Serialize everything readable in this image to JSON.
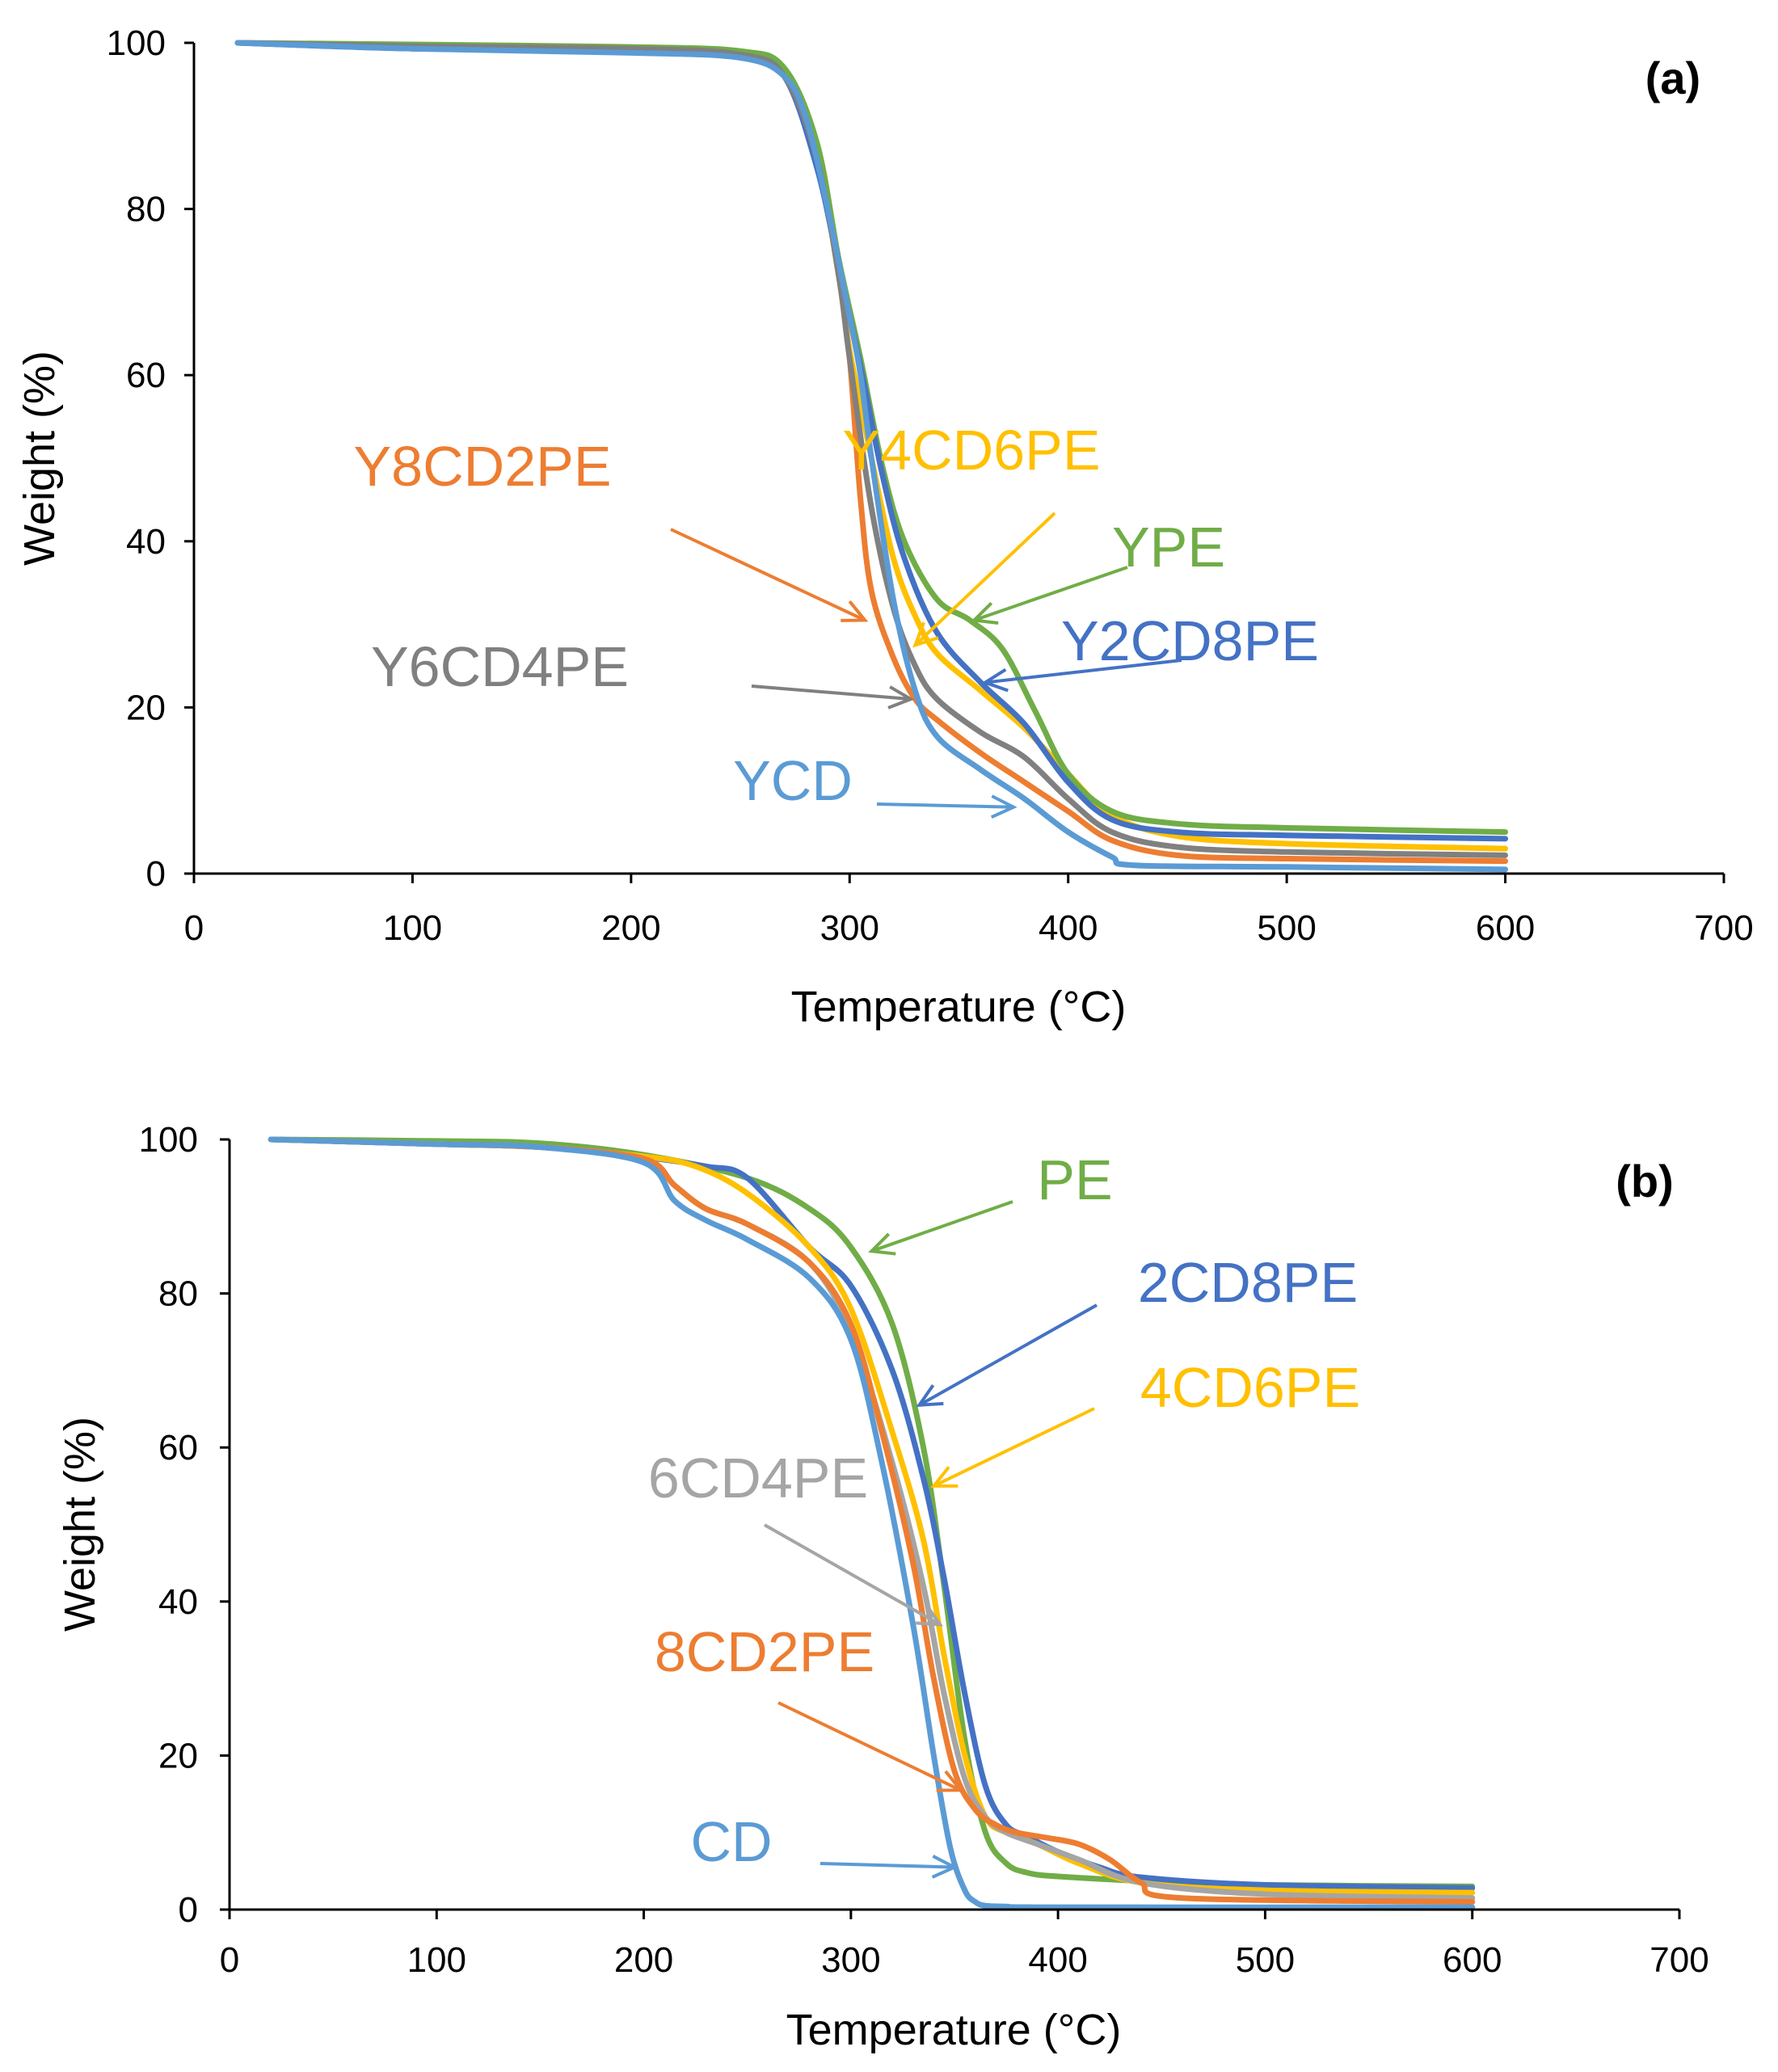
{
  "chart_data": [
    {
      "type": "line",
      "panel": "(a)",
      "title": "",
      "xlabel": "Temperature  (°C)",
      "ylabel": "Weight (%)",
      "xlim": [
        0,
        700
      ],
      "ylim": [
        0,
        100
      ],
      "xticks": [
        0,
        100,
        200,
        300,
        400,
        500,
        600,
        700
      ],
      "yticks": [
        0,
        20,
        40,
        60,
        80,
        100
      ],
      "grid": false,
      "series": [
        {
          "name": "Y8CD2PE",
          "color": "#ED7D31",
          "x": [
            20,
            100,
            200,
            250,
            270,
            285,
            295,
            300,
            305,
            310,
            320,
            330,
            340,
            360,
            380,
            400,
            420,
            450,
            500,
            600
          ],
          "y": [
            100,
            99.6,
            99.3,
            98.6,
            96,
            86,
            72,
            62,
            45,
            34,
            26,
            21,
            18.5,
            14.5,
            11,
            7.5,
            4,
            2.2,
            1.8,
            1.5
          ]
        },
        {
          "name": "Y4CD6PE",
          "color": "#FFC000",
          "x": [
            20,
            100,
            200,
            250,
            270,
            285,
            295,
            300,
            310,
            320,
            330,
            340,
            360,
            380,
            400,
            420,
            450,
            500,
            600
          ],
          "y": [
            100,
            99.6,
            99.3,
            98.6,
            96,
            86,
            72,
            63,
            50,
            38,
            31,
            26.5,
            22,
            17.5,
            12,
            7,
            4.5,
            3.6,
            3
          ]
        },
        {
          "name": "YPE",
          "color": "#70AD47",
          "x": [
            20,
            100,
            200,
            250,
            270,
            285,
            295,
            305,
            315,
            325,
            340,
            355,
            370,
            385,
            400,
            420,
            450,
            500,
            600
          ],
          "y": [
            100,
            99.8,
            99.5,
            99,
            97,
            88,
            74,
            62,
            49,
            40,
            33,
            30.5,
            27,
            19.5,
            12,
            7.5,
            6,
            5.5,
            5
          ]
        },
        {
          "name": "Y2CD8PE",
          "color": "#4472C4",
          "x": [
            20,
            100,
            200,
            250,
            270,
            285,
            295,
            305,
            315,
            325,
            340,
            360,
            380,
            400,
            420,
            450,
            500,
            600
          ],
          "y": [
            100,
            99.3,
            99,
            98.5,
            96,
            85,
            73,
            61,
            48,
            38,
            29,
            23,
            18,
            11,
            6.5,
            5,
            4.6,
            4.2
          ]
        },
        {
          "name": "Y6CD4PE",
          "color": "#808080",
          "x": [
            20,
            100,
            200,
            250,
            270,
            285,
            295,
            300,
            310,
            320,
            330,
            340,
            360,
            380,
            400,
            420,
            450,
            500,
            600
          ],
          "y": [
            100,
            99.6,
            99.3,
            98.6,
            96,
            86,
            72,
            62,
            44,
            32,
            25,
            21,
            17,
            14,
            9,
            5,
            3.2,
            2.6,
            2.2
          ]
        },
        {
          "name": "YCD",
          "color": "#5B9BD5",
          "x": [
            20,
            100,
            200,
            250,
            270,
            280,
            290,
            300,
            305,
            310,
            320,
            330,
            340,
            360,
            380,
            400,
            420,
            430,
            500,
            600
          ],
          "y": [
            100,
            99.3,
            98.8,
            98.2,
            96,
            91,
            80,
            67,
            60,
            50,
            33,
            22,
            16.5,
            12.5,
            9,
            5,
            2,
            1,
            0.8,
            0.5
          ]
        }
      ],
      "annotations": [
        {
          "text": "Y8CD2PE",
          "color": "#ED7D31",
          "target": [
            307,
            30.5
          ]
        },
        {
          "text": "Y4CD6PE",
          "color": "#FFC000",
          "target": [
            330,
            27.5
          ]
        },
        {
          "text": "YPE",
          "color": "#70AD47",
          "target": [
            357,
            30.5
          ]
        },
        {
          "text": "Y2CD8PE",
          "color": "#4472C4",
          "target": [
            362,
            23
          ]
        },
        {
          "text": "Y6CD4PE",
          "color": "#808080",
          "target": [
            328,
            21
          ]
        },
        {
          "text": "YCD",
          "color": "#5B9BD5",
          "target": [
            375,
            8
          ]
        }
      ]
    },
    {
      "type": "line",
      "panel": "(b)",
      "title": "",
      "xlabel": "Temperature  (°C)",
      "ylabel": "Weight (%)",
      "xlim": [
        0,
        700
      ],
      "ylim": [
        0,
        100
      ],
      "xticks": [
        0,
        100,
        200,
        300,
        400,
        500,
        600,
        700
      ],
      "yticks": [
        0,
        20,
        40,
        60,
        80,
        100
      ],
      "grid": false,
      "series": [
        {
          "name": "PE",
          "color": "#70AD47",
          "x": [
            20,
            100,
            150,
            200,
            250,
            280,
            300,
            320,
            335,
            345,
            355,
            365,
            375,
            385,
            400,
            450,
            500,
            600
          ],
          "y": [
            100,
            99.8,
            99.5,
            98,
            95,
            91,
            86,
            76,
            60,
            42,
            22,
            10,
            6,
            4.8,
            4.3,
            3.6,
            3.2,
            3
          ]
        },
        {
          "name": "2CD8PE",
          "color": "#4472C4",
          "x": [
            20,
            100,
            150,
            200,
            230,
            250,
            280,
            300,
            320,
            335,
            345,
            355,
            365,
            375,
            385,
            400,
            420,
            440,
            500,
            600
          ],
          "y": [
            100,
            99.4,
            99,
            97.7,
            96.5,
            95,
            86,
            81,
            70,
            56,
            43,
            28,
            16,
            11,
            9.5,
            7.5,
            5.5,
            4.2,
            3.2,
            2.8
          ]
        },
        {
          "name": "4CD6PE",
          "color": "#FFC000",
          "x": [
            20,
            100,
            150,
            200,
            225,
            250,
            280,
            300,
            320,
            335,
            345,
            355,
            365,
            375,
            390,
            410,
            440,
            500,
            600
          ],
          "y": [
            100,
            99.4,
            99,
            97.8,
            96.5,
            93,
            86,
            78,
            62,
            48,
            33,
            20,
            12,
            10,
            8.5,
            6,
            3.5,
            2.5,
            2.2
          ]
        },
        {
          "name": "6CD4PE",
          "color": "#A5A5A5",
          "x": [
            20,
            100,
            150,
            200,
            215,
            230,
            250,
            280,
            300,
            320,
            335,
            345,
            355,
            365,
            375,
            390,
            410,
            440,
            500,
            600
          ],
          "y": [
            100,
            99.4,
            99,
            97.5,
            94,
            91,
            89,
            84,
            75,
            58,
            42,
            28,
            17,
            12,
            10,
            8.5,
            6.5,
            3.5,
            2,
            1.5
          ]
        },
        {
          "name": "8CD2PE",
          "color": "#ED7D31",
          "x": [
            20,
            100,
            150,
            200,
            215,
            230,
            250,
            280,
            300,
            315,
            330,
            340,
            350,
            360,
            370,
            380,
            395,
            410,
            425,
            440,
            460,
            600
          ],
          "y": [
            100,
            99.4,
            99,
            97.5,
            94,
            91,
            89,
            84,
            76,
            62,
            45,
            30,
            18,
            13,
            11,
            10,
            9.3,
            8.5,
            6.5,
            3.5,
            1.5,
            1
          ]
        },
        {
          "name": "CD",
          "color": "#5B9BD5",
          "x": [
            20,
            100,
            150,
            200,
            215,
            230,
            250,
            280,
            300,
            315,
            330,
            340,
            348,
            355,
            360,
            365,
            375,
            400,
            600
          ],
          "y": [
            100,
            99.4,
            99,
            97,
            92,
            89.5,
            87,
            82,
            74,
            58,
            37,
            20,
            8,
            2.5,
            1,
            0.5,
            0.4,
            0.3,
            0.3
          ]
        }
      ],
      "annotations": [
        {
          "text": "PE",
          "color": "#70AD47",
          "target": [
            310,
            85.5
          ]
        },
        {
          "text": "2CD8PE",
          "color": "#4472C4",
          "target": [
            333,
            65.5
          ]
        },
        {
          "text": "4CD6PE",
          "color": "#FFC000",
          "target": [
            340,
            55
          ]
        },
        {
          "text": "6CD4PE",
          "color": "#A5A5A5",
          "target": [
            343,
            37
          ]
        },
        {
          "text": "8CD2PE",
          "color": "#ED7D31",
          "target": [
            353,
            15.5
          ]
        },
        {
          "text": "CD",
          "color": "#5B9BD5",
          "target": [
            350,
            5.5
          ]
        }
      ]
    }
  ]
}
